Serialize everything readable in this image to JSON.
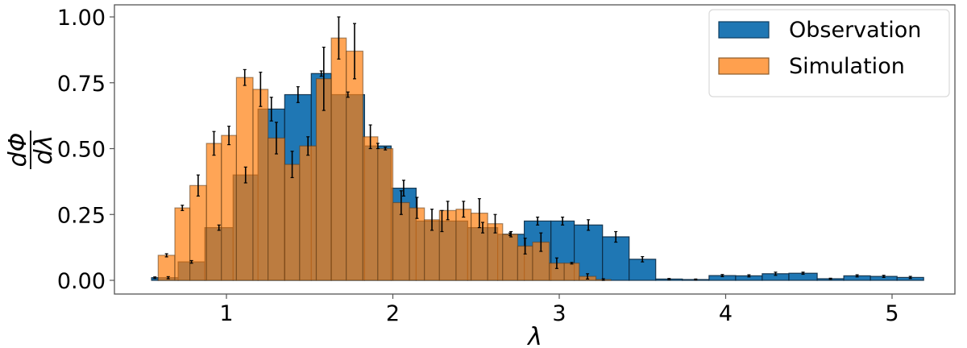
{
  "chart_data": {
    "type": "bar",
    "subtype": "overlaid-histogram-with-errorbars",
    "title": "",
    "xlabel": "λ",
    "ylabel": "dΦ/dλ",
    "xlim": [
      0.31,
      5.38
    ],
    "ylim": [
      -0.05,
      1.05
    ],
    "xticks": [
      1,
      2,
      3,
      4,
      5
    ],
    "xtick_labels": [
      "1",
      "2",
      "3",
      "4",
      "5"
    ],
    "yticks": [
      0.0,
      0.25,
      0.5,
      0.75,
      1.0
    ],
    "ytick_labels": [
      "0.00",
      "0.25",
      "0.50",
      "0.75",
      "1.00"
    ],
    "grid": false,
    "legend_position": "upper right",
    "series": [
      {
        "name": "Observation",
        "color": "#1f77b4",
        "alpha": 1.0,
        "bins": [
          {
            "left": 0.55,
            "right": 0.59,
            "value": 0.01,
            "err": 0.003
          },
          {
            "left": 0.59,
            "right": 0.71,
            "value": 0.01,
            "err": 0.004
          },
          {
            "left": 0.71,
            "right": 0.87,
            "value": 0.07,
            "err": 0.005
          },
          {
            "left": 0.87,
            "right": 1.04,
            "value": 0.2,
            "err": 0.01
          },
          {
            "left": 1.04,
            "right": 1.19,
            "value": 0.4,
            "err": 0.03
          },
          {
            "left": 1.19,
            "right": 1.35,
            "value": 0.65,
            "err": 0.045
          },
          {
            "left": 1.35,
            "right": 1.51,
            "value": 0.705,
            "err": 0.03
          },
          {
            "left": 1.51,
            "right": 1.63,
            "value": 0.785,
            "err": 0.01
          },
          {
            "left": 1.63,
            "right": 1.83,
            "value": 0.705,
            "err": 0.01
          },
          {
            "left": 1.83,
            "right": 1.99,
            "value": 0.51,
            "err": 0.01
          },
          {
            "left": 1.99,
            "right": 2.14,
            "value": 0.35,
            "err": 0.03
          },
          {
            "left": 2.14,
            "right": 2.45,
            "value": 0.225,
            "err": 0.04
          },
          {
            "left": 2.45,
            "right": 2.63,
            "value": 0.2,
            "err": 0.02
          },
          {
            "left": 2.63,
            "right": 2.79,
            "value": 0.175,
            "err": 0.01
          },
          {
            "left": 2.79,
            "right": 2.95,
            "value": 0.225,
            "err": 0.015
          },
          {
            "left": 2.95,
            "right": 3.09,
            "value": 0.225,
            "err": 0.015
          },
          {
            "left": 3.09,
            "right": 3.26,
            "value": 0.21,
            "err": 0.02
          },
          {
            "left": 3.26,
            "right": 3.42,
            "value": 0.165,
            "err": 0.02
          },
          {
            "left": 3.42,
            "right": 3.58,
            "value": 0.08,
            "err": 0.01
          },
          {
            "left": 3.58,
            "right": 3.74,
            "value": 0.005,
            "err": 0.002
          },
          {
            "left": 3.74,
            "right": 3.9,
            "value": 0.003,
            "err": 0.002
          },
          {
            "left": 3.9,
            "right": 4.06,
            "value": 0.018,
            "err": 0.004
          },
          {
            "left": 4.06,
            "right": 4.22,
            "value": 0.017,
            "err": 0.004
          },
          {
            "left": 4.22,
            "right": 4.38,
            "value": 0.025,
            "err": 0.006
          },
          {
            "left": 4.38,
            "right": 4.55,
            "value": 0.027,
            "err": 0.004
          },
          {
            "left": 4.55,
            "right": 4.71,
            "value": 0.006,
            "err": 0.002
          },
          {
            "left": 4.71,
            "right": 4.87,
            "value": 0.017,
            "err": 0.004
          },
          {
            "left": 4.87,
            "right": 5.03,
            "value": 0.015,
            "err": 0.004
          },
          {
            "left": 5.03,
            "right": 5.19,
            "value": 0.011,
            "err": 0.004
          }
        ]
      },
      {
        "name": "Simulation",
        "color": "#ff7f0e",
        "alpha": 0.7,
        "bins": [
          {
            "left": 0.59,
            "right": 0.69,
            "value": 0.095,
            "err": 0.006
          },
          {
            "left": 0.69,
            "right": 0.78,
            "value": 0.275,
            "err": 0.01
          },
          {
            "left": 0.78,
            "right": 0.88,
            "value": 0.36,
            "err": 0.04
          },
          {
            "left": 0.88,
            "right": 0.97,
            "value": 0.52,
            "err": 0.045
          },
          {
            "left": 0.97,
            "right": 1.06,
            "value": 0.55,
            "err": 0.035
          },
          {
            "left": 1.06,
            "right": 1.16,
            "value": 0.77,
            "err": 0.03
          },
          {
            "left": 1.16,
            "right": 1.25,
            "value": 0.725,
            "err": 0.065
          },
          {
            "left": 1.25,
            "right": 1.35,
            "value": 0.54,
            "err": 0.06
          },
          {
            "left": 1.35,
            "right": 1.44,
            "value": 0.44,
            "err": 0.05
          },
          {
            "left": 1.44,
            "right": 1.54,
            "value": 0.51,
            "err": 0.035
          },
          {
            "left": 1.54,
            "right": 1.63,
            "value": 0.765,
            "err": 0.12
          },
          {
            "left": 1.63,
            "right": 1.72,
            "value": 0.92,
            "err": 0.08
          },
          {
            "left": 1.72,
            "right": 1.82,
            "value": 0.87,
            "err": 0.105
          },
          {
            "left": 1.82,
            "right": 1.91,
            "value": 0.545,
            "err": 0.045
          },
          {
            "left": 1.91,
            "right": 2.0,
            "value": 0.5,
            "err": 0.005
          },
          {
            "left": 2.0,
            "right": 2.1,
            "value": 0.295,
            "err": 0.045
          },
          {
            "left": 2.1,
            "right": 2.19,
            "value": 0.275,
            "err": 0.04
          },
          {
            "left": 2.19,
            "right": 2.28,
            "value": 0.23,
            "err": 0.04
          },
          {
            "left": 2.28,
            "right": 2.38,
            "value": 0.265,
            "err": 0.035
          },
          {
            "left": 2.38,
            "right": 2.47,
            "value": 0.27,
            "err": 0.03
          },
          {
            "left": 2.47,
            "right": 2.57,
            "value": 0.255,
            "err": 0.055
          },
          {
            "left": 2.57,
            "right": 2.66,
            "value": 0.215,
            "err": 0.035
          },
          {
            "left": 2.66,
            "right": 2.75,
            "value": 0.175,
            "err": 0.005
          },
          {
            "left": 2.75,
            "right": 2.84,
            "value": 0.13,
            "err": 0.03
          },
          {
            "left": 2.84,
            "right": 2.94,
            "value": 0.145,
            "err": 0.035
          },
          {
            "left": 2.94,
            "right": 3.03,
            "value": 0.065,
            "err": 0.02
          },
          {
            "left": 3.03,
            "right": 3.12,
            "value": 0.065,
            "err": 0.003
          },
          {
            "left": 3.12,
            "right": 3.22,
            "value": 0.015,
            "err": 0.01
          },
          {
            "left": 3.22,
            "right": 3.31,
            "value": 0.003,
            "err": 0.003
          }
        ]
      }
    ]
  },
  "legend": {
    "items": [
      {
        "label": "Observation",
        "color": "#1f77b4"
      },
      {
        "label": "Simulation",
        "color": "#ffa04e"
      }
    ]
  },
  "axes": {
    "xlabel": "λ",
    "ylabel_numerator": "dΦ",
    "ylabel_denominator": "dλ"
  }
}
